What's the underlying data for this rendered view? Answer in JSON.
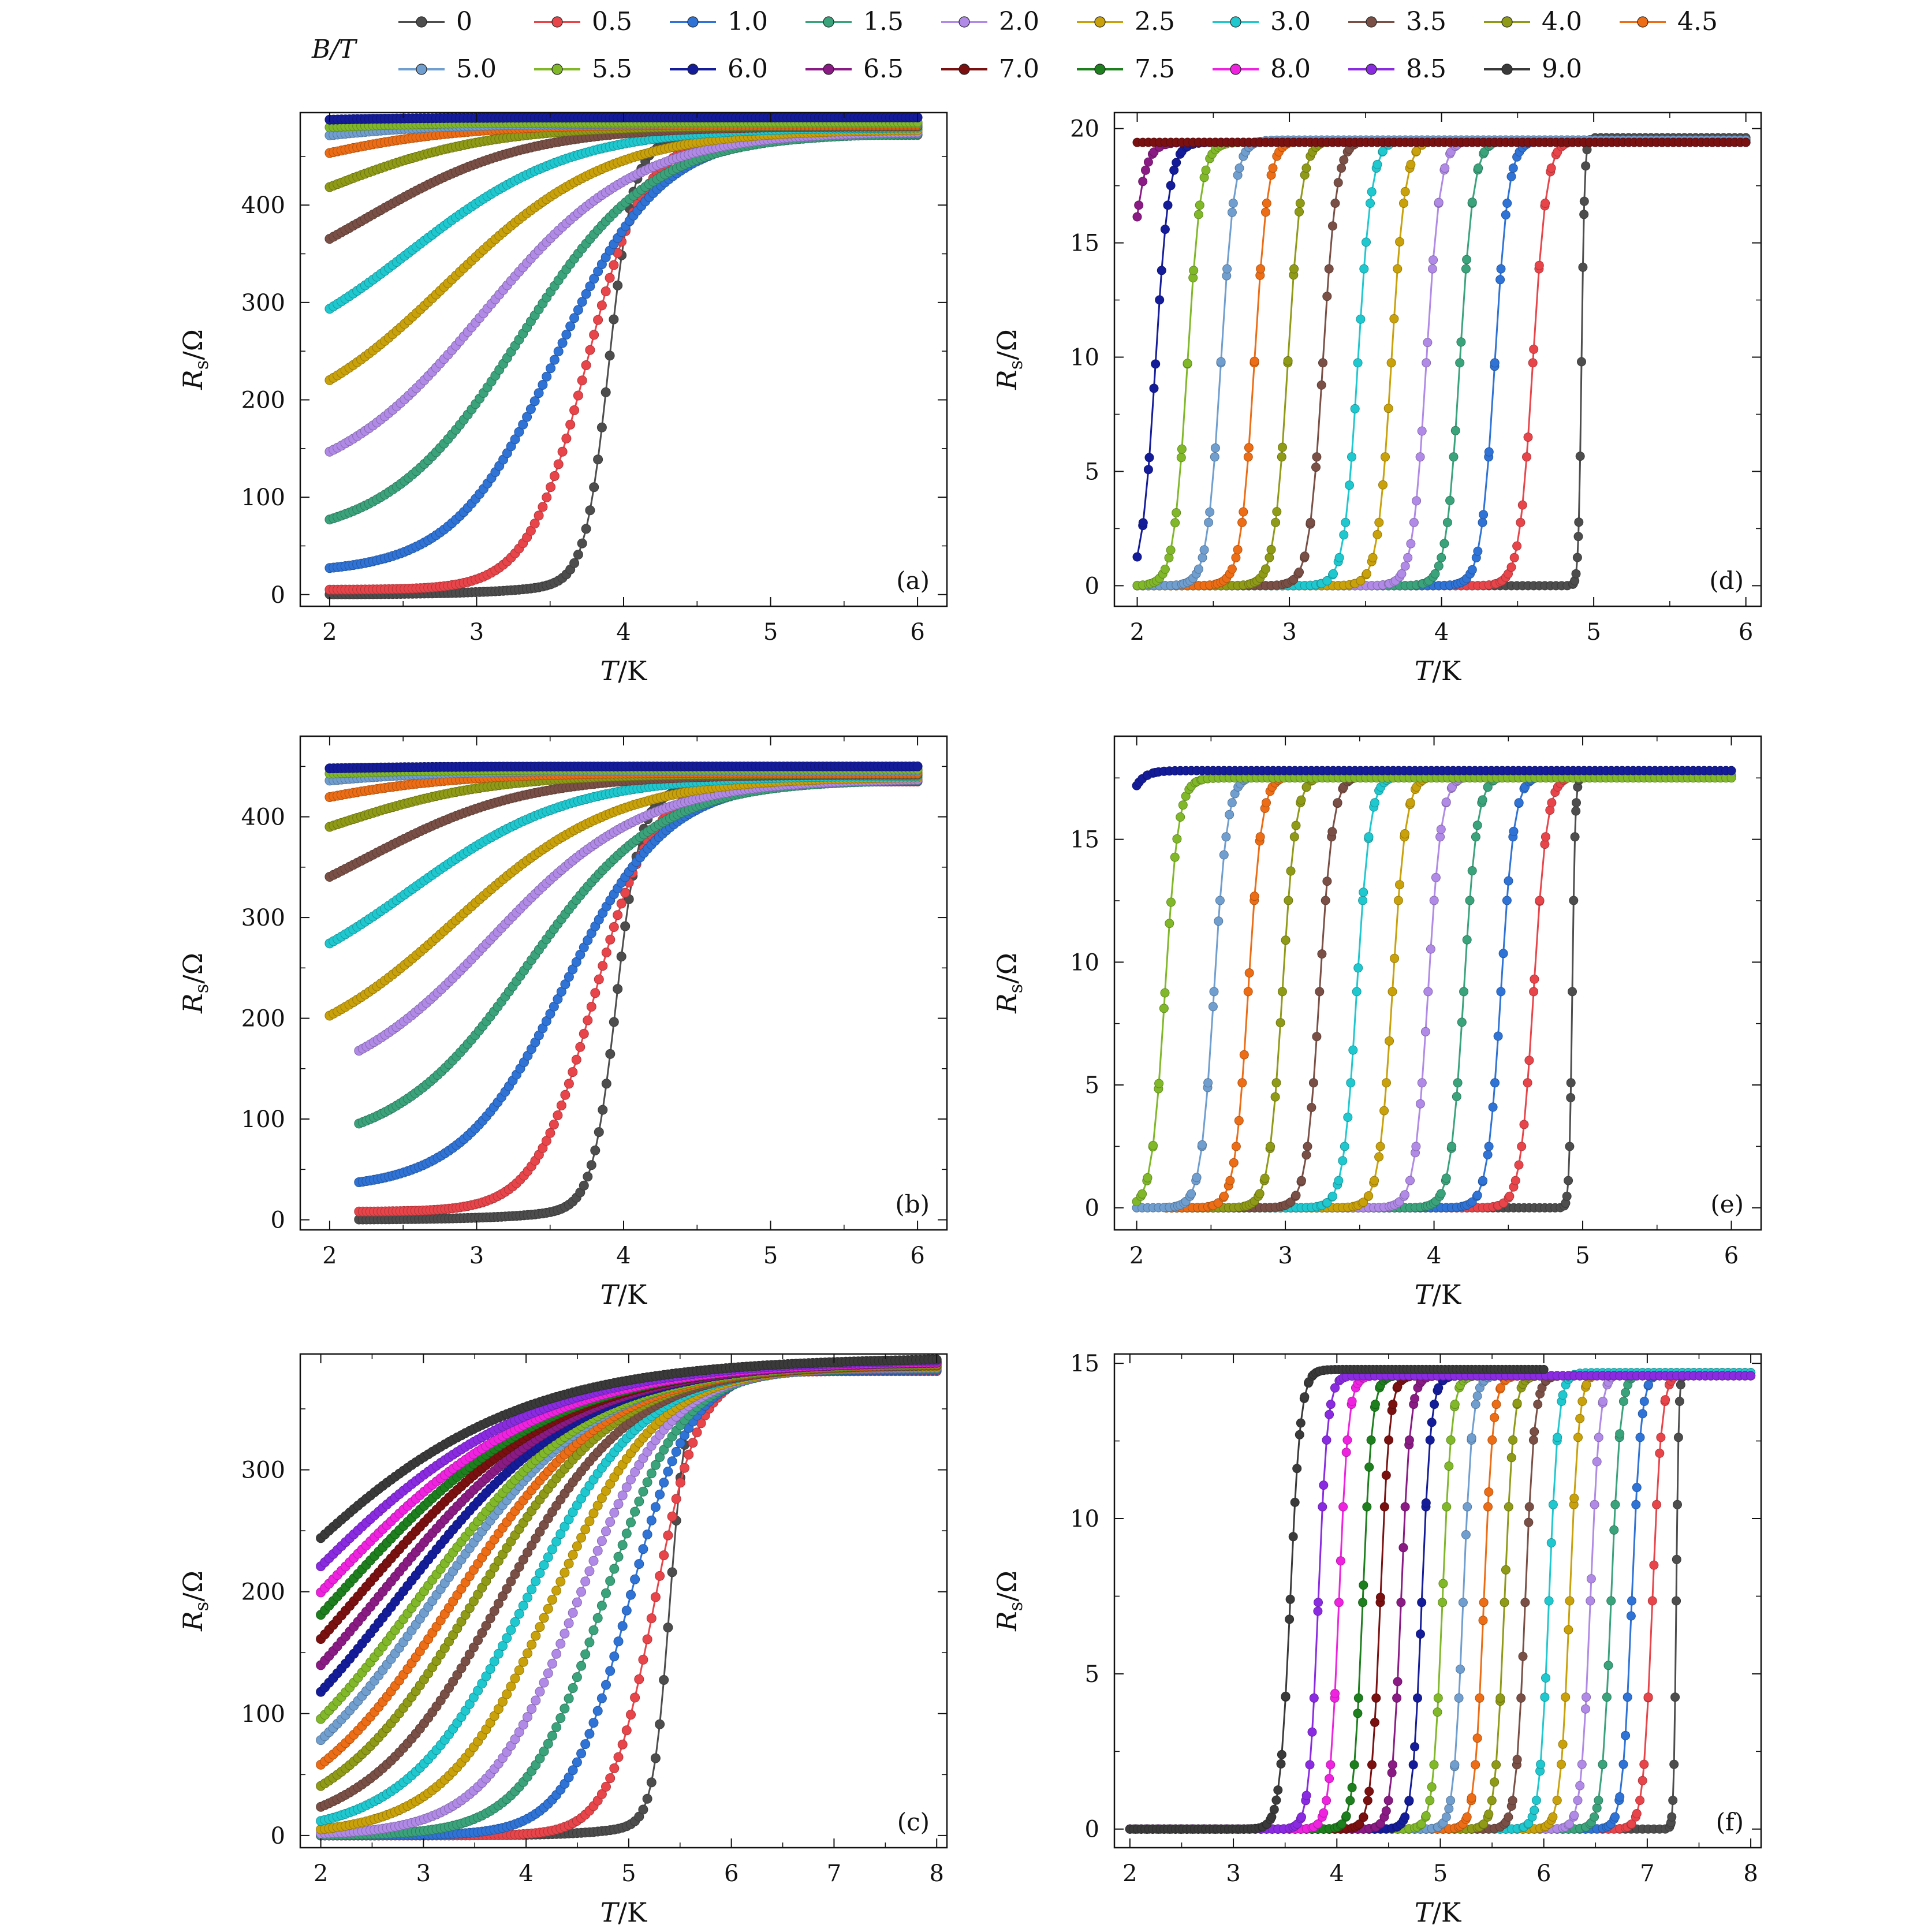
{
  "legend": {
    "title": "B/T",
    "entries": [
      {
        "label": "0",
        "color": "#4d4d4d"
      },
      {
        "label": "0.5",
        "color": "#e8454b"
      },
      {
        "label": "1.0",
        "color": "#2f73d6"
      },
      {
        "label": "1.5",
        "color": "#3ba37c"
      },
      {
        "label": "2.0",
        "color": "#b08ae6"
      },
      {
        "label": "2.5",
        "color": "#c9a10a"
      },
      {
        "label": "3.0",
        "color": "#1fc8cf"
      },
      {
        "label": "3.5",
        "color": "#7a5046"
      },
      {
        "label": "4.0",
        "color": "#8f9a16"
      },
      {
        "label": "4.5",
        "color": "#ec6d15"
      },
      {
        "label": "5.0",
        "color": "#709ecf"
      },
      {
        "label": "5.5",
        "color": "#80b829"
      },
      {
        "label": "6.0",
        "color": "#141c9a"
      },
      {
        "label": "6.5",
        "color": "#8a1a84"
      },
      {
        "label": "7.0",
        "color": "#7a1010"
      },
      {
        "label": "7.5",
        "color": "#1d7f1d"
      },
      {
        "label": "8.0",
        "color": "#ef22e0"
      },
      {
        "label": "8.5",
        "color": "#8a2be2"
      },
      {
        "label": "9.0",
        "color": "#3a3a3a"
      }
    ]
  },
  "chart_data": [
    {
      "type": "scatter",
      "panel_label": "(a)",
      "xlabel": "T/K",
      "ylabel": "Rs/Ω",
      "xlim": [
        1.8,
        6.2
      ],
      "ylim": [
        -12,
        495
      ],
      "xticks": [
        2,
        3,
        4,
        5,
        6
      ],
      "yticks": [
        0,
        100,
        200,
        300,
        400
      ],
      "model": "broad",
      "series": [
        {
          "field": "0",
          "xmin": 2.0,
          "xmax": 6.0,
          "tc": 3.9,
          "r0": 0,
          "rn": 478,
          "w": 0.08
        },
        {
          "field": "0.5",
          "xmin": 2.0,
          "xmax": 6.0,
          "tc": 3.75,
          "r0": 5,
          "rn": 472,
          "w": 0.2
        },
        {
          "field": "1.0",
          "xmin": 2.0,
          "xmax": 6.0,
          "tc": 3.55,
          "r0": 22,
          "rn": 473,
          "w": 0.35
        },
        {
          "field": "1.5",
          "xmin": 2.0,
          "xmax": 6.0,
          "tc": 3.3,
          "r0": 55,
          "rn": 474,
          "w": 0.45
        },
        {
          "field": "2.0",
          "xmin": 2.0,
          "xmax": 6.0,
          "tc": 3.05,
          "r0": 103,
          "rn": 476,
          "w": 0.52
        },
        {
          "field": "2.5",
          "xmin": 2.0,
          "xmax": 6.0,
          "tc": 2.8,
          "r0": 160,
          "rn": 478,
          "w": 0.55
        },
        {
          "field": "3.0",
          "xmin": 2.0,
          "xmax": 6.0,
          "tc": 2.55,
          "r0": 225,
          "rn": 480,
          "w": 0.55
        },
        {
          "field": "3.5",
          "xmin": 2.0,
          "xmax": 6.0,
          "tc": 2.25,
          "r0": 292,
          "rn": 481,
          "w": 0.55
        },
        {
          "field": "4.0",
          "xmin": 2.0,
          "xmax": 6.0,
          "tc": 2.0,
          "r0": 355,
          "rn": 482,
          "w": 0.55
        },
        {
          "field": "4.5",
          "xmin": 2.0,
          "xmax": 6.0,
          "tc": 1.75,
          "r0": 407,
          "rn": 483,
          "w": 0.55
        },
        {
          "field": "5.0",
          "xmin": 2.0,
          "xmax": 6.0,
          "tc": 1.5,
          "r0": 441,
          "rn": 484,
          "w": 0.55
        },
        {
          "field": "5.5",
          "xmin": 2.0,
          "xmax": 6.0,
          "tc": 1.3,
          "r0": 462,
          "rn": 485,
          "w": 0.55
        },
        {
          "field": "6.0",
          "xmin": 2.0,
          "xmax": 6.0,
          "tc": 1.1,
          "r0": 476,
          "rn": 490,
          "w": 0.55
        }
      ]
    },
    {
      "type": "scatter",
      "panel_label": "(d)",
      "xlabel": "T/K",
      "ylabel": "Rs/Ω",
      "xlim": [
        1.85,
        6.1
      ],
      "ylim": [
        -0.9,
        20.7
      ],
      "xticks": [
        2,
        3,
        4,
        5,
        6
      ],
      "yticks": [
        0,
        5,
        10,
        15,
        20
      ],
      "model": "sharp",
      "series": [
        {
          "field": "0",
          "xmin": 2.0,
          "xmax": 6.0,
          "tc": 4.92,
          "rn": 19.6,
          "w": 0.01
        },
        {
          "field": "0.5",
          "xmin": 2.0,
          "xmax": 6.0,
          "tc": 4.6,
          "rn": 19.5,
          "w": 0.045
        },
        {
          "field": "1.0",
          "xmin": 2.0,
          "xmax": 6.0,
          "tc": 4.35,
          "rn": 19.5,
          "w": 0.045
        },
        {
          "field": "1.5",
          "xmin": 2.0,
          "xmax": 6.0,
          "tc": 4.12,
          "rn": 19.5,
          "w": 0.045
        },
        {
          "field": "2.0",
          "xmin": 2.0,
          "xmax": 6.0,
          "tc": 3.9,
          "rn": 19.5,
          "w": 0.045
        },
        {
          "field": "2.5",
          "xmin": 2.0,
          "xmax": 6.0,
          "tc": 3.67,
          "rn": 19.5,
          "w": 0.045
        },
        {
          "field": "3.0",
          "xmin": 2.0,
          "xmax": 6.0,
          "tc": 3.45,
          "rn": 19.5,
          "w": 0.045
        },
        {
          "field": "3.5",
          "xmin": 2.0,
          "xmax": 6.0,
          "tc": 3.22,
          "rn": 19.5,
          "w": 0.045
        },
        {
          "field": "4.0",
          "xmin": 2.0,
          "xmax": 6.0,
          "tc": 2.99,
          "rn": 19.5,
          "w": 0.045
        },
        {
          "field": "4.5",
          "xmin": 2.0,
          "xmax": 6.0,
          "tc": 2.77,
          "rn": 19.5,
          "w": 0.045
        },
        {
          "field": "5.0",
          "xmin": 2.0,
          "xmax": 6.0,
          "tc": 2.55,
          "rn": 19.5,
          "w": 0.045
        },
        {
          "field": "5.5",
          "xmin": 2.0,
          "xmax": 6.0,
          "tc": 2.33,
          "rn": 19.4,
          "w": 0.045
        },
        {
          "field": "6.0",
          "xmin": 2.0,
          "xmax": 6.0,
          "tc": 2.12,
          "rn": 19.4,
          "w": 0.045
        },
        {
          "field": "6.5",
          "xmin": 2.0,
          "xmax": 6.0,
          "tc": 1.92,
          "rn": 19.4,
          "w": 0.05
        },
        {
          "field": "7.0",
          "xmin": 2.0,
          "xmax": 6.0,
          "tc": 1.5,
          "rn": 19.4,
          "w": 0.06
        }
      ]
    },
    {
      "type": "scatter",
      "panel_label": "(b)",
      "xlabel": "T/K",
      "ylabel": "Rs/Ω",
      "xlim": [
        1.8,
        6.2
      ],
      "ylim": [
        -10,
        480
      ],
      "xticks": [
        2,
        3,
        4,
        5,
        6
      ],
      "yticks": [
        0,
        100,
        200,
        300,
        400
      ],
      "model": "broad",
      "series": [
        {
          "field": "0",
          "xmin": 2.2,
          "xmax": 6.0,
          "tc": 3.95,
          "r0": 0,
          "rn": 437,
          "w": 0.08
        },
        {
          "field": "0.5",
          "xmin": 2.2,
          "xmax": 6.0,
          "tc": 3.8,
          "r0": 8,
          "rn": 435,
          "w": 0.2
        },
        {
          "field": "1.0",
          "xmin": 2.2,
          "xmax": 6.0,
          "tc": 3.6,
          "r0": 30,
          "rn": 436,
          "w": 0.35
        },
        {
          "field": "1.5",
          "xmin": 2.2,
          "xmax": 6.0,
          "tc": 3.35,
          "r0": 69,
          "rn": 437,
          "w": 0.45
        },
        {
          "field": "2.0",
          "xmin": 2.2,
          "xmax": 6.0,
          "tc": 3.1,
          "r0": 120,
          "rn": 438,
          "w": 0.52
        },
        {
          "field": "2.5",
          "xmin": 2.0,
          "xmax": 6.0,
          "tc": 2.85,
          "r0": 152,
          "rn": 440,
          "w": 0.55
        },
        {
          "field": "3.0",
          "xmin": 2.0,
          "xmax": 6.0,
          "tc": 2.55,
          "r0": 213,
          "rn": 441,
          "w": 0.55
        },
        {
          "field": "3.5",
          "xmin": 2.0,
          "xmax": 6.0,
          "tc": 2.25,
          "r0": 276,
          "rn": 442,
          "w": 0.55
        },
        {
          "field": "4.0",
          "xmin": 2.0,
          "xmax": 6.0,
          "tc": 2.0,
          "r0": 337,
          "rn": 443,
          "w": 0.55
        },
        {
          "field": "4.5",
          "xmin": 2.0,
          "xmax": 6.0,
          "tc": 1.75,
          "r0": 381,
          "rn": 444,
          "w": 0.55
        },
        {
          "field": "5.0",
          "xmin": 2.0,
          "xmax": 6.0,
          "tc": 1.5,
          "r0": 411,
          "rn": 446,
          "w": 0.55
        },
        {
          "field": "5.5",
          "xmin": 2.0,
          "xmax": 6.0,
          "tc": 1.3,
          "r0": 428,
          "rn": 447,
          "w": 0.55
        },
        {
          "field": "6.0",
          "xmin": 2.0,
          "xmax": 6.0,
          "tc": 1.1,
          "r0": 438,
          "rn": 450,
          "w": 0.55
        }
      ]
    },
    {
      "type": "scatter",
      "panel_label": "(e)",
      "xlabel": "T/K",
      "ylabel": "Rs/Ω",
      "xlim": [
        1.85,
        6.2
      ],
      "ylim": [
        -0.9,
        19.2
      ],
      "xticks": [
        2,
        3,
        4,
        5,
        6
      ],
      "yticks": [
        0,
        5,
        10,
        15
      ],
      "model": "sharp",
      "series": [
        {
          "field": "0",
          "xmin": 2.2,
          "xmax": 6.0,
          "tc": 4.93,
          "rn": 17.6,
          "w": 0.01
        },
        {
          "field": "0.5",
          "xmin": 2.2,
          "xmax": 6.0,
          "tc": 4.67,
          "rn": 17.6,
          "w": 0.045
        },
        {
          "field": "1.0",
          "xmin": 2.2,
          "xmax": 6.0,
          "tc": 4.45,
          "rn": 17.6,
          "w": 0.045
        },
        {
          "field": "1.5",
          "xmin": 2.2,
          "xmax": 6.0,
          "tc": 4.2,
          "rn": 17.6,
          "w": 0.045
        },
        {
          "field": "2.0",
          "xmin": 2.2,
          "xmax": 6.0,
          "tc": 3.96,
          "rn": 17.6,
          "w": 0.045
        },
        {
          "field": "2.5",
          "xmin": 2.2,
          "xmax": 6.0,
          "tc": 3.72,
          "rn": 17.6,
          "w": 0.045
        },
        {
          "field": "3.0",
          "xmin": 2.2,
          "xmax": 6.0,
          "tc": 3.48,
          "rn": 17.6,
          "w": 0.045
        },
        {
          "field": "3.5",
          "xmin": 2.2,
          "xmax": 6.0,
          "tc": 3.23,
          "rn": 17.6,
          "w": 0.045
        },
        {
          "field": "4.0",
          "xmin": 2.2,
          "xmax": 6.0,
          "tc": 2.98,
          "rn": 17.6,
          "w": 0.045
        },
        {
          "field": "4.5",
          "xmin": 2.2,
          "xmax": 6.0,
          "tc": 2.75,
          "rn": 17.6,
          "w": 0.045
        },
        {
          "field": "5.0",
          "xmin": 2.0,
          "xmax": 6.0,
          "tc": 2.52,
          "rn": 17.6,
          "w": 0.045
        },
        {
          "field": "5.5",
          "xmin": 2.0,
          "xmax": 6.0,
          "tc": 2.19,
          "rn": 17.5,
          "w": 0.045
        },
        {
          "field": "6.0",
          "xmin": 2.0,
          "xmax": 6.0,
          "tc": 1.8,
          "rn": 17.8,
          "w": 0.06
        }
      ]
    },
    {
      "type": "scatter",
      "panel_label": "(c)",
      "xlabel": "T/K",
      "ylabel": "Rs/Ω",
      "xlim": [
        1.8,
        8.1
      ],
      "ylim": [
        -10,
        395
      ],
      "xticks": [
        2,
        3,
        4,
        5,
        6,
        7,
        8
      ],
      "yticks": [
        0,
        100,
        200,
        300
      ],
      "model": "broad",
      "series": [
        {
          "field": "0",
          "xmin": 2.0,
          "xmax": 8.0,
          "tc": 5.4,
          "r0": 0,
          "rn": 384,
          "w": 0.08
        },
        {
          "field": "0.5",
          "xmin": 2.0,
          "xmax": 8.0,
          "tc": 5.25,
          "r0": 0,
          "rn": 381,
          "w": 0.22
        },
        {
          "field": "1.0",
          "xmin": 2.0,
          "xmax": 8.0,
          "tc": 5.0,
          "r0": 0,
          "rn": 382,
          "w": 0.3
        },
        {
          "field": "1.5",
          "xmin": 2.0,
          "xmax": 8.0,
          "tc": 4.75,
          "r0": 0,
          "rn": 383,
          "w": 0.38
        },
        {
          "field": "2.0",
          "xmin": 2.0,
          "xmax": 8.0,
          "tc": 4.5,
          "r0": 0,
          "rn": 384,
          "w": 0.45
        },
        {
          "field": "2.5",
          "xmin": 2.0,
          "xmax": 8.0,
          "tc": 4.25,
          "r0": 0,
          "rn": 385,
          "w": 0.52
        },
        {
          "field": "3.0",
          "xmin": 2.0,
          "xmax": 8.0,
          "tc": 4.0,
          "r0": 0,
          "rn": 386,
          "w": 0.58
        },
        {
          "field": "3.5",
          "xmin": 2.0,
          "xmax": 8.0,
          "tc": 3.75,
          "r0": 0,
          "rn": 386,
          "w": 0.64
        },
        {
          "field": "4.0",
          "xmin": 2.0,
          "xmax": 8.0,
          "tc": 3.5,
          "r0": 0,
          "rn": 387,
          "w": 0.7
        },
        {
          "field": "4.5",
          "xmin": 2.0,
          "xmax": 8.0,
          "tc": 3.3,
          "r0": 0,
          "rn": 387,
          "w": 0.75
        },
        {
          "field": "5.0",
          "xmin": 2.0,
          "xmax": 8.0,
          "tc": 3.1,
          "r0": 0,
          "rn": 388,
          "w": 0.8
        },
        {
          "field": "5.5",
          "xmin": 2.0,
          "xmax": 8.0,
          "tc": 2.95,
          "r0": 0,
          "rn": 388,
          "w": 0.85
        },
        {
          "field": "6.0",
          "xmin": 2.0,
          "xmax": 8.0,
          "tc": 2.75,
          "r0": 0,
          "rn": 389,
          "w": 0.9
        },
        {
          "field": "6.5",
          "xmin": 2.0,
          "xmax": 8.0,
          "tc": 2.55,
          "r0": 0,
          "rn": 389,
          "w": 0.95
        },
        {
          "field": "7.0",
          "xmin": 2.0,
          "xmax": 8.0,
          "tc": 2.35,
          "r0": 0,
          "rn": 390,
          "w": 1.0
        },
        {
          "field": "7.5",
          "xmin": 2.0,
          "xmax": 8.0,
          "tc": 2.15,
          "r0": 0,
          "rn": 390,
          "w": 1.05
        },
        {
          "field": "8.0",
          "xmin": 2.0,
          "xmax": 8.0,
          "tc": 1.95,
          "r0": 0,
          "rn": 390,
          "w": 1.1
        },
        {
          "field": "8.5",
          "xmin": 2.0,
          "xmax": 8.0,
          "tc": 1.7,
          "r0": 0,
          "rn": 391,
          "w": 1.15
        },
        {
          "field": "9.0",
          "xmin": 2.0,
          "xmax": 8.0,
          "tc": 1.4,
          "r0": 0,
          "rn": 392,
          "w": 1.2
        }
      ]
    },
    {
      "type": "scatter",
      "panel_label": "(f)",
      "xlabel": "T/K",
      "ylabel": "Rs/Ω",
      "xlim": [
        1.85,
        8.1
      ],
      "ylim": [
        -0.6,
        15.3
      ],
      "xticks": [
        2,
        3,
        4,
        5,
        6,
        7,
        8
      ],
      "yticks": [
        0,
        5,
        10,
        15
      ],
      "model": "sharp",
      "series": [
        {
          "field": "0",
          "xmin": 2.0,
          "xmax": 8.0,
          "tc": 7.28,
          "rn": 14.7,
          "w": 0.012
        },
        {
          "field": "0.5",
          "xmin": 2.0,
          "xmax": 8.0,
          "tc": 7.05,
          "rn": 14.7,
          "w": 0.045
        },
        {
          "field": "1.0",
          "xmin": 2.0,
          "xmax": 8.0,
          "tc": 6.85,
          "rn": 14.7,
          "w": 0.045
        },
        {
          "field": "1.5",
          "xmin": 2.0,
          "xmax": 8.0,
          "tc": 6.65,
          "rn": 14.7,
          "w": 0.045
        },
        {
          "field": "2.0",
          "xmin": 2.0,
          "xmax": 8.0,
          "tc": 6.45,
          "rn": 14.7,
          "w": 0.045
        },
        {
          "field": "2.5",
          "xmin": 2.0,
          "xmax": 8.0,
          "tc": 6.25,
          "rn": 14.7,
          "w": 0.045
        },
        {
          "field": "3.0",
          "xmin": 2.0,
          "xmax": 8.0,
          "tc": 6.05,
          "rn": 14.7,
          "w": 0.045
        },
        {
          "field": "3.5",
          "xmin": 2.0,
          "xmax": 8.0,
          "tc": 5.82,
          "rn": 14.6,
          "w": 0.045
        },
        {
          "field": "4.0",
          "xmin": 2.0,
          "xmax": 8.0,
          "tc": 5.62,
          "rn": 14.6,
          "w": 0.045
        },
        {
          "field": "4.5",
          "xmin": 2.0,
          "xmax": 8.0,
          "tc": 5.42,
          "rn": 14.6,
          "w": 0.045
        },
        {
          "field": "5.0",
          "xmin": 2.0,
          "xmax": 8.0,
          "tc": 5.22,
          "rn": 14.6,
          "w": 0.045
        },
        {
          "field": "5.5",
          "xmin": 2.0,
          "xmax": 8.0,
          "tc": 5.02,
          "rn": 14.6,
          "w": 0.045
        },
        {
          "field": "6.0",
          "xmin": 2.0,
          "xmax": 8.0,
          "tc": 4.82,
          "rn": 14.6,
          "w": 0.045
        },
        {
          "field": "6.5",
          "xmin": 2.0,
          "xmax": 8.0,
          "tc": 4.62,
          "rn": 14.6,
          "w": 0.045
        },
        {
          "field": "7.0",
          "xmin": 2.0,
          "xmax": 8.0,
          "tc": 4.42,
          "rn": 14.6,
          "w": 0.045
        },
        {
          "field": "7.5",
          "xmin": 2.0,
          "xmax": 8.0,
          "tc": 4.25,
          "rn": 14.6,
          "w": 0.045
        },
        {
          "field": "8.0",
          "xmin": 2.0,
          "xmax": 8.0,
          "tc": 4.02,
          "rn": 14.6,
          "w": 0.045
        },
        {
          "field": "8.5",
          "xmin": 2.0,
          "xmax": 8.0,
          "tc": 3.82,
          "rn": 14.6,
          "w": 0.045
        },
        {
          "field": "9.0",
          "xmin": 2.0,
          "xmax": 6.0,
          "tc": 3.55,
          "rn": 14.8,
          "w": 0.05
        }
      ]
    }
  ]
}
